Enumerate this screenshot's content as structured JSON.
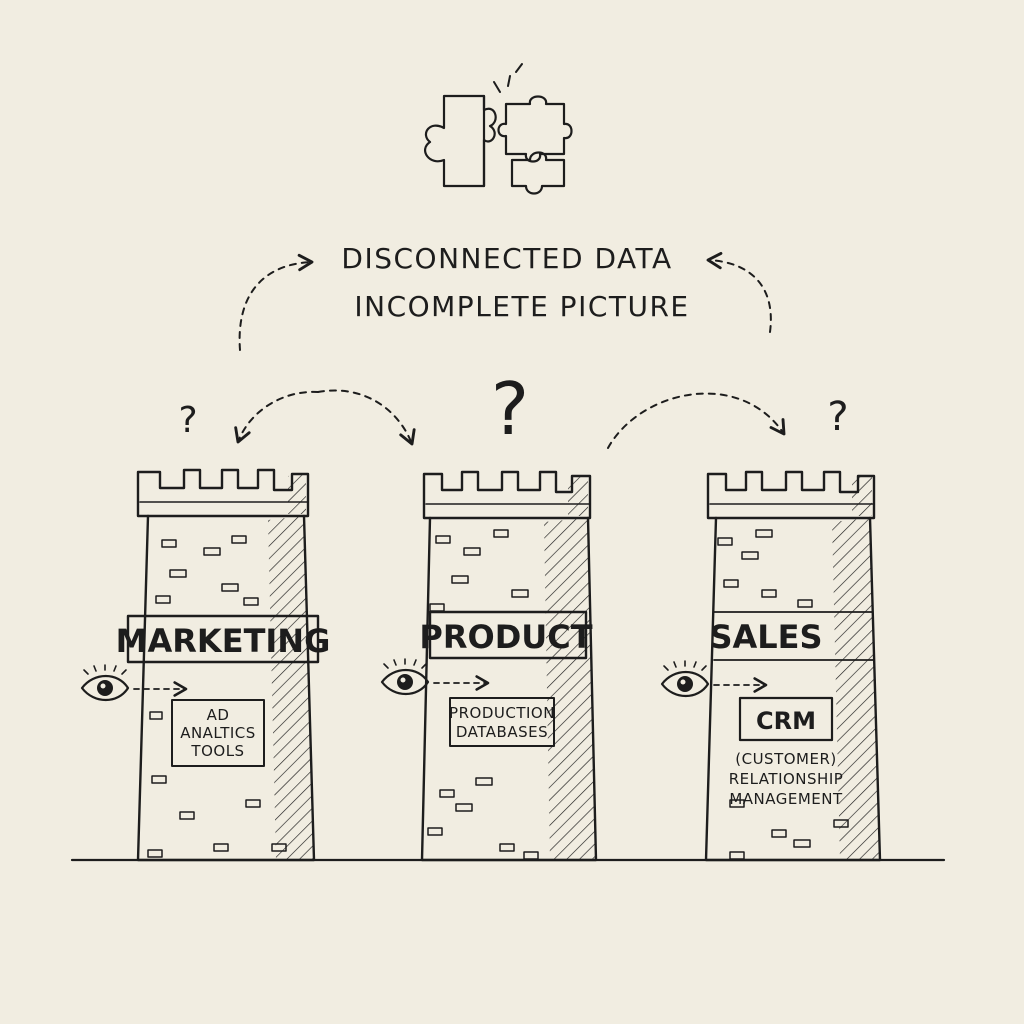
{
  "headline": {
    "line1": "DISCONNECTED DATA",
    "line2": "INCOMPLETE PICTURE"
  },
  "question_marks": {
    "center": "?",
    "left": "?",
    "right": "?"
  },
  "towers": [
    {
      "label": "MARKETING",
      "box_lines": [
        "AD",
        "ANALTICS",
        "TOOLS"
      ]
    },
    {
      "label": "PRODUCT",
      "box_lines": [
        "PRODUCTION",
        "DATABASES"
      ]
    },
    {
      "label": "SALES",
      "box_title": "CRM",
      "sub_lines": [
        "(CUSTOMER)",
        "RELATIONSHIP",
        "MANAGEMENT"
      ]
    }
  ],
  "icons": [
    "puzzle-icon",
    "eye-icon",
    "eye-icon",
    "eye-icon"
  ],
  "colors": {
    "paper": "#f1ede1",
    "ink": "#1d1d1d"
  }
}
